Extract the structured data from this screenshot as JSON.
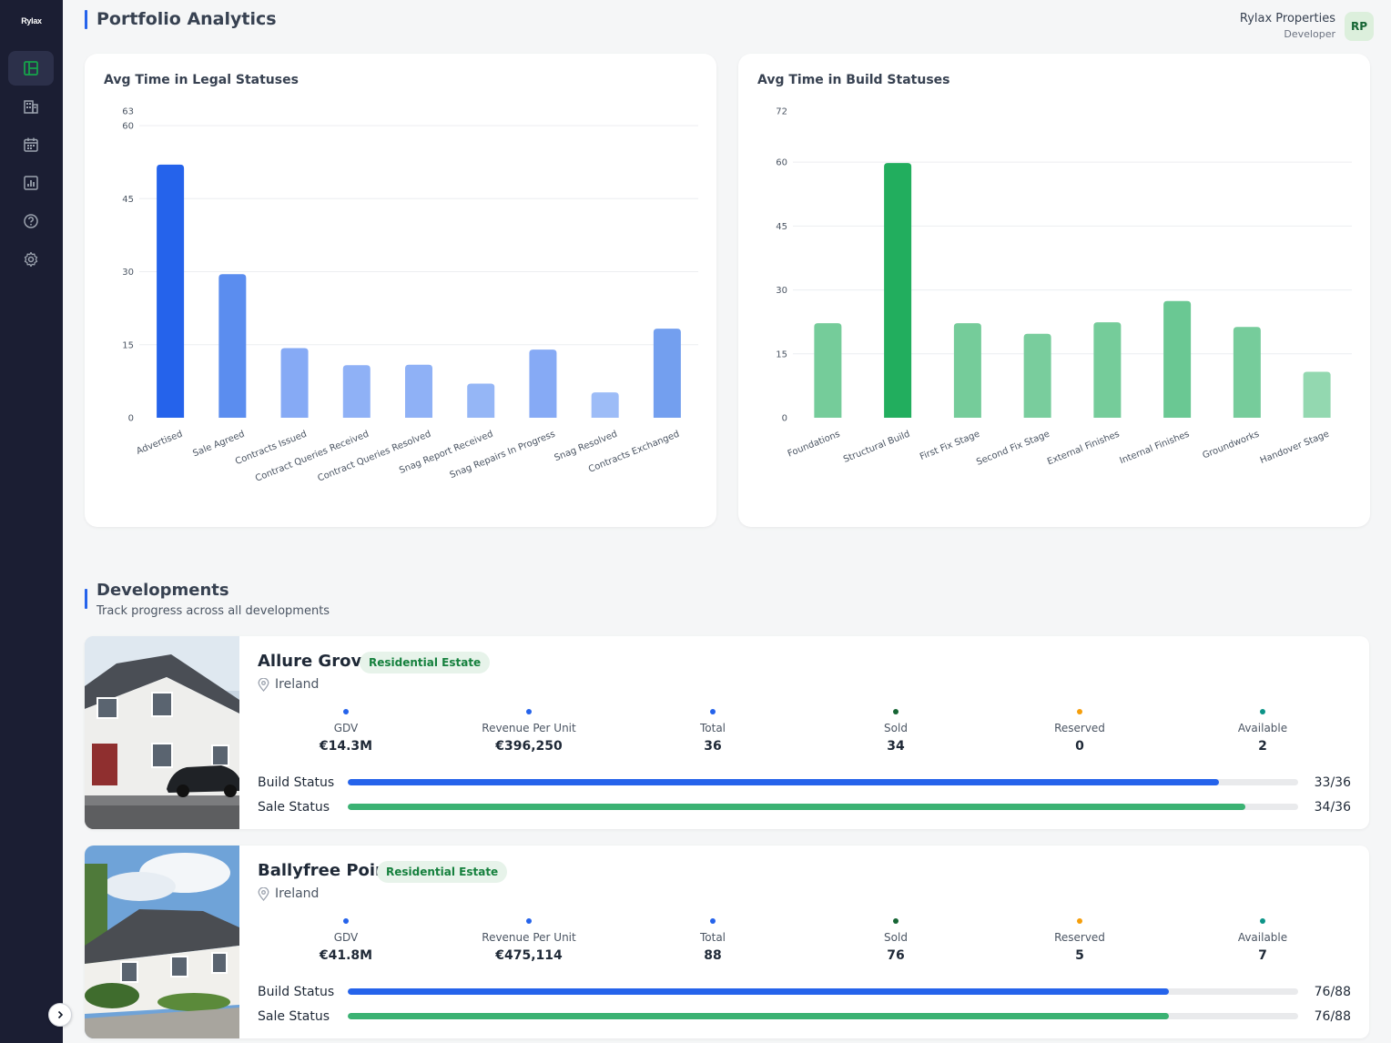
{
  "app": {
    "logo": "Rylax"
  },
  "sidebar": {
    "items": [
      {
        "name": "dashboard",
        "icon": "dashboard-icon",
        "active": true
      },
      {
        "name": "developments",
        "icon": "building-icon",
        "active": false
      },
      {
        "name": "calendar",
        "icon": "calendar-icon",
        "active": false
      },
      {
        "name": "analytics",
        "icon": "chart-icon",
        "active": false
      },
      {
        "name": "help",
        "icon": "help-icon",
        "active": false
      },
      {
        "name": "settings",
        "icon": "gear-icon",
        "active": false
      }
    ],
    "collapse_icon": "chevron-right-icon"
  },
  "header": {
    "title": "Portfolio Analytics",
    "user_name": "Rylax Properties",
    "user_role": "Developer",
    "avatar_initials": "RP"
  },
  "chart_data": [
    {
      "type": "bar",
      "title": "Avg Time in Legal Statuses",
      "categories": [
        "Advertised",
        "Sale Agreed",
        "Contracts Issued",
        "Contract Queries Received",
        "Contract Queries Resolved",
        "Snag Report Received",
        "Snag Repairs In Progress",
        "Snag Resolved",
        "Contracts Exchanged"
      ],
      "values": [
        52,
        29.5,
        14.3,
        10.8,
        10.9,
        7,
        14,
        5.2,
        18.3
      ],
      "ylim": [
        0,
        63
      ],
      "yticks": [
        0,
        15,
        30,
        45,
        60,
        63
      ],
      "colors": [
        "#2563eb",
        "#5b8def",
        "#86aaf5",
        "#8fb1f6",
        "#8fb1f6",
        "#95b6f6",
        "#86aaf5",
        "#9dbcf7",
        "#739fef"
      ],
      "grid": true
    },
    {
      "type": "bar",
      "title": "Avg Time in Build Statuses",
      "categories": [
        "Foundations",
        "Structural Build",
        "First Fix Stage",
        "Second Fix Stage",
        "External Finishes",
        "Internal Finishes",
        "Groundworks",
        "Handover Stage"
      ],
      "values": [
        22.2,
        59.8,
        22.2,
        19.7,
        22.4,
        27.4,
        21.3,
        10.8
      ],
      "ylim": [
        0,
        72
      ],
      "yticks": [
        0,
        15,
        30,
        45,
        60,
        72
      ],
      "colors": [
        "#75cc9a",
        "#22ae5e",
        "#75cc9a",
        "#79cd9d",
        "#75cc9a",
        "#6ac893",
        "#76cc9b",
        "#93d8b0"
      ],
      "grid": true
    }
  ],
  "developments": {
    "title": "Developments",
    "subtitle": "Track progress across all developments",
    "items": [
      {
        "name": "Allure Grove",
        "badge": "Residential Estate",
        "location": "Ireland",
        "stats": [
          {
            "label": "GDV",
            "value": "€14.3M",
            "color": "#2563eb"
          },
          {
            "label": "Revenue Per Unit",
            "value": "€396,250",
            "color": "#2563eb"
          },
          {
            "label": "Total",
            "value": "36",
            "color": "#2563eb"
          },
          {
            "label": "Sold",
            "value": "34",
            "color": "#166534"
          },
          {
            "label": "Reserved",
            "value": "0",
            "color": "#f59e0b"
          },
          {
            "label": "Available",
            "value": "2",
            "color": "#0d9488"
          }
        ],
        "build_label": "Build Status",
        "build_progress": 0.917,
        "build_count": "33/36",
        "sale_label": "Sale Status",
        "sale_progress": 0.944,
        "sale_count": "34/36"
      },
      {
        "name": "Ballyfree Point",
        "badge": "Residential Estate",
        "location": "Ireland",
        "stats": [
          {
            "label": "GDV",
            "value": "€41.8M",
            "color": "#2563eb"
          },
          {
            "label": "Revenue Per Unit",
            "value": "€475,114",
            "color": "#2563eb"
          },
          {
            "label": "Total",
            "value": "88",
            "color": "#2563eb"
          },
          {
            "label": "Sold",
            "value": "76",
            "color": "#166534"
          },
          {
            "label": "Reserved",
            "value": "5",
            "color": "#f59e0b"
          },
          {
            "label": "Available",
            "value": "7",
            "color": "#0d9488"
          }
        ],
        "build_label": "Build Status",
        "build_progress": 0.864,
        "build_count": "76/88",
        "sale_label": "Sale Status",
        "sale_progress": 0.864,
        "sale_count": "76/88"
      }
    ]
  },
  "colors": {
    "accent": "#2563eb",
    "build_bar": "#2563eb",
    "sale_bar": "#3bb273",
    "sidebar_bg": "#1b1e33"
  }
}
